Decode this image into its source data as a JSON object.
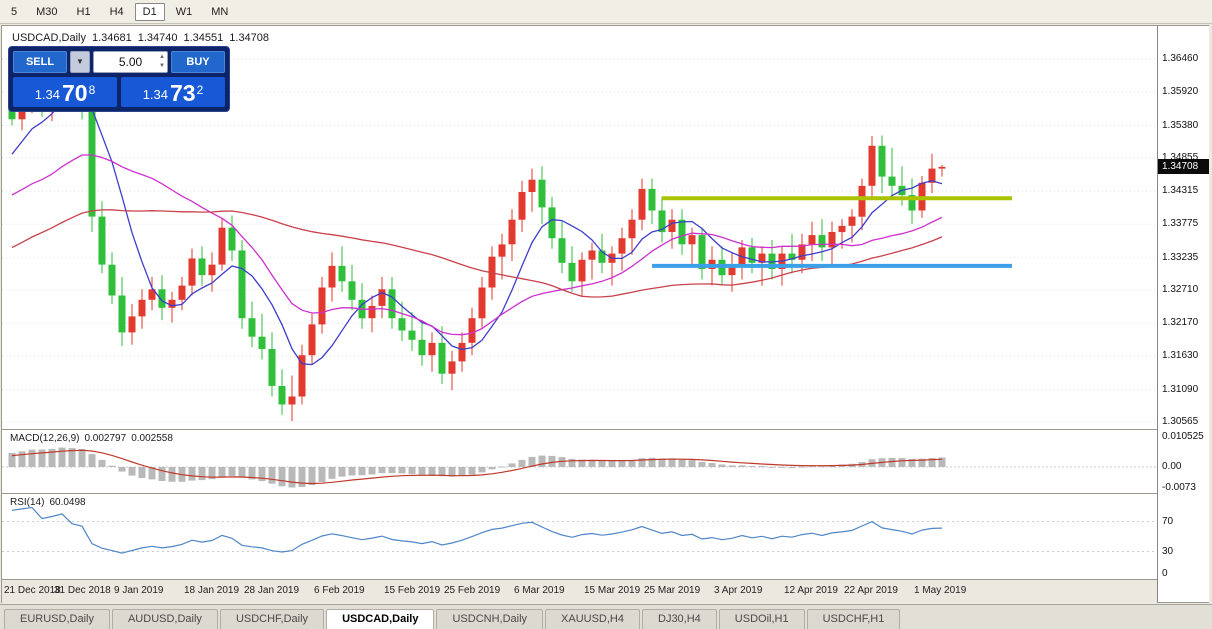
{
  "toolbar": {
    "timeframes": [
      "5",
      "M30",
      "H1",
      "H4",
      "D1",
      "W1",
      "MN"
    ],
    "active": "D1"
  },
  "chart_header": {
    "symbol_title": "USDCAD,Daily",
    "open": "1.34681",
    "high": "1.34740",
    "low": "1.34551",
    "close": "1.34708"
  },
  "trade_panel": {
    "sell_label": "SELL",
    "buy_label": "BUY",
    "volume": "5.00",
    "icons": {
      "dropdown": "▼",
      "spin_up": "▲",
      "spin_down": "▼"
    },
    "sell_price": {
      "prefix": "1.34",
      "big": "70",
      "sup": "8"
    },
    "buy_price": {
      "prefix": "1.34",
      "big": "73",
      "sup": "2"
    }
  },
  "price_scale": {
    "ticks": [
      "1.36460",
      "1.35920",
      "1.35380",
      "1.34855",
      "1.34315",
      "1.33775",
      "1.33235",
      "1.32710",
      "1.32170",
      "1.31630",
      "1.31090",
      "1.30565"
    ],
    "last_price": "1.34708"
  },
  "indicators": {
    "macd": {
      "label": "MACD(12,26,9)",
      "value_main": "0.002797",
      "value_signal": "0.002558",
      "scale": [
        "0.010525",
        "0.00",
        "-0.0073"
      ]
    },
    "rsi": {
      "label": "RSI(14)",
      "value": "60.0498",
      "scale": [
        "70",
        "30",
        "0"
      ]
    }
  },
  "tabs": {
    "items": [
      "EURUSD,Daily",
      "AUDUSD,Daily",
      "USDCHF,Daily",
      "USDCAD,Daily",
      "USDCNH,Daily",
      "XAUUSD,H4",
      "DJ30,H4",
      "USDOil,H1",
      "USDCHF,H1"
    ],
    "active": "USDCAD,Daily"
  },
  "chart_data": {
    "type": "candlestick",
    "symbol": "USDCAD",
    "timeframe": "Daily",
    "up_color": "#e23a2e",
    "down_color": "#2fbf3a",
    "last_price": 1.34708,
    "y_axis_ticks": [
      1.3646,
      1.3592,
      1.3538,
      1.34855,
      1.34315,
      1.33775,
      1.33235,
      1.3271,
      1.3217,
      1.3163,
      1.3109,
      1.30565
    ],
    "candles_ohlc": [
      [
        1.358,
        1.3605,
        1.3538,
        1.3548
      ],
      [
        1.3548,
        1.3585,
        1.353,
        1.3575
      ],
      [
        1.3575,
        1.3622,
        1.3558,
        1.361
      ],
      [
        1.361,
        1.3632,
        1.3552,
        1.3565
      ],
      [
        1.3565,
        1.3605,
        1.3545,
        1.3595
      ],
      [
        1.3595,
        1.3648,
        1.358,
        1.364
      ],
      [
        1.364,
        1.3658,
        1.3562,
        1.3585
      ],
      [
        1.3585,
        1.3618,
        1.3548,
        1.3568
      ],
      [
        1.3568,
        1.3585,
        1.3365,
        1.339
      ],
      [
        1.339,
        1.3415,
        1.3298,
        1.3312
      ],
      [
        1.3312,
        1.3332,
        1.3248,
        1.3262
      ],
      [
        1.3262,
        1.3292,
        1.318,
        1.3202
      ],
      [
        1.3202,
        1.3248,
        1.3182,
        1.3228
      ],
      [
        1.3228,
        1.3272,
        1.3208,
        1.3255
      ],
      [
        1.3255,
        1.3292,
        1.3238,
        1.3272
      ],
      [
        1.3272,
        1.3295,
        1.3222,
        1.3242
      ],
      [
        1.3242,
        1.3268,
        1.3218,
        1.3255
      ],
      [
        1.3255,
        1.3292,
        1.3238,
        1.3278
      ],
      [
        1.3278,
        1.3338,
        1.3262,
        1.3322
      ],
      [
        1.3322,
        1.3342,
        1.3278,
        1.3295
      ],
      [
        1.3295,
        1.3332,
        1.3268,
        1.3312
      ],
      [
        1.3312,
        1.3388,
        1.3302,
        1.3372
      ],
      [
        1.3372,
        1.3392,
        1.3318,
        1.3335
      ],
      [
        1.3335,
        1.3352,
        1.3208,
        1.3225
      ],
      [
        1.3225,
        1.3252,
        1.3178,
        1.3195
      ],
      [
        1.3195,
        1.3232,
        1.3158,
        1.3175
      ],
      [
        1.3175,
        1.3202,
        1.3098,
        1.3115
      ],
      [
        1.3115,
        1.3142,
        1.3068,
        1.3085
      ],
      [
        1.3085,
        1.3132,
        1.3058,
        1.3098
      ],
      [
        1.3098,
        1.3182,
        1.3085,
        1.3165
      ],
      [
        1.3165,
        1.3232,
        1.315,
        1.3215
      ],
      [
        1.3215,
        1.3292,
        1.32,
        1.3275
      ],
      [
        1.3275,
        1.3332,
        1.3252,
        1.331
      ],
      [
        1.331,
        1.3342,
        1.3268,
        1.3285
      ],
      [
        1.3285,
        1.3312,
        1.3238,
        1.3255
      ],
      [
        1.3255,
        1.3282,
        1.3208,
        1.3225
      ],
      [
        1.3225,
        1.3262,
        1.3202,
        1.3245
      ],
      [
        1.3245,
        1.3292,
        1.3225,
        1.3272
      ],
      [
        1.3272,
        1.3292,
        1.3208,
        1.3225
      ],
      [
        1.3225,
        1.3252,
        1.3188,
        1.3205
      ],
      [
        1.3205,
        1.3235,
        1.3172,
        1.319
      ],
      [
        1.319,
        1.3222,
        1.3148,
        1.3165
      ],
      [
        1.3165,
        1.3202,
        1.3138,
        1.3185
      ],
      [
        1.3185,
        1.3212,
        1.3118,
        1.3135
      ],
      [
        1.3135,
        1.3172,
        1.3108,
        1.3155
      ],
      [
        1.3155,
        1.3202,
        1.3138,
        1.3185
      ],
      [
        1.3185,
        1.3242,
        1.3165,
        1.3225
      ],
      [
        1.3225,
        1.3292,
        1.321,
        1.3275
      ],
      [
        1.3275,
        1.3342,
        1.3255,
        1.3325
      ],
      [
        1.3325,
        1.3362,
        1.3288,
        1.3345
      ],
      [
        1.3345,
        1.3402,
        1.3318,
        1.3385
      ],
      [
        1.3385,
        1.3448,
        1.3365,
        1.343
      ],
      [
        1.343,
        1.3468,
        1.3398,
        1.345
      ],
      [
        1.345,
        1.3472,
        1.3378,
        1.3405
      ],
      [
        1.3405,
        1.3422,
        1.3338,
        1.3355
      ],
      [
        1.3355,
        1.3382,
        1.3298,
        1.3315
      ],
      [
        1.3315,
        1.3342,
        1.3268,
        1.3285
      ],
      [
        1.3285,
        1.3332,
        1.3262,
        1.332
      ],
      [
        1.332,
        1.3348,
        1.3288,
        1.3335
      ],
      [
        1.3335,
        1.3362,
        1.3298,
        1.3315
      ],
      [
        1.3315,
        1.3342,
        1.3278,
        1.333
      ],
      [
        1.333,
        1.3372,
        1.3302,
        1.3355
      ],
      [
        1.3355,
        1.3402,
        1.3328,
        1.3385
      ],
      [
        1.3385,
        1.3452,
        1.3368,
        1.3435
      ],
      [
        1.3435,
        1.3452,
        1.3378,
        1.34
      ],
      [
        1.34,
        1.3422,
        1.3348,
        1.3365
      ],
      [
        1.3365,
        1.3402,
        1.3338,
        1.3385
      ],
      [
        1.3385,
        1.3402,
        1.3328,
        1.3345
      ],
      [
        1.3345,
        1.3372,
        1.3308,
        1.336
      ],
      [
        1.336,
        1.3372,
        1.3288,
        1.3305
      ],
      [
        1.3305,
        1.3342,
        1.3278,
        1.332
      ],
      [
        1.332,
        1.3342,
        1.3278,
        1.3295
      ],
      [
        1.3295,
        1.3332,
        1.3268,
        1.331
      ],
      [
        1.331,
        1.3352,
        1.3288,
        1.334
      ],
      [
        1.334,
        1.3356,
        1.3298,
        1.3315
      ],
      [
        1.3315,
        1.3342,
        1.3278,
        1.333
      ],
      [
        1.333,
        1.3352,
        1.3288,
        1.3305
      ],
      [
        1.3305,
        1.3342,
        1.3278,
        1.333
      ],
      [
        1.333,
        1.3362,
        1.3298,
        1.332
      ],
      [
        1.332,
        1.3362,
        1.3298,
        1.3345
      ],
      [
        1.3345,
        1.3382,
        1.3318,
        1.336
      ],
      [
        1.336,
        1.3386,
        1.3318,
        1.334
      ],
      [
        1.334,
        1.3382,
        1.3308,
        1.3365
      ],
      [
        1.3365,
        1.3386,
        1.3338,
        1.3375
      ],
      [
        1.3375,
        1.3402,
        1.3348,
        1.339
      ],
      [
        1.339,
        1.3452,
        1.3368,
        1.344
      ],
      [
        1.344,
        1.3521,
        1.3418,
        1.3505
      ],
      [
        1.3505,
        1.3522,
        1.3428,
        1.3455
      ],
      [
        1.3455,
        1.3502,
        1.3418,
        1.344
      ],
      [
        1.344,
        1.3472,
        1.3408,
        1.3425
      ],
      [
        1.3425,
        1.3452,
        1.3378,
        1.34
      ],
      [
        1.34,
        1.3456,
        1.3388,
        1.3445
      ],
      [
        1.3445,
        1.3492,
        1.3428,
        1.3468
      ],
      [
        1.34681,
        1.3474,
        1.34551,
        1.34708
      ]
    ],
    "x_date_labels": [
      {
        "i": 0,
        "t": "21 Dec 2018"
      },
      {
        "i": 5,
        "t": "31 Dec 2018"
      },
      {
        "i": 11,
        "t": "9 Jan 2019"
      },
      {
        "i": 18,
        "t": "18 Jan 2019"
      },
      {
        "i": 24,
        "t": "28 Jan 2019"
      },
      {
        "i": 31,
        "t": "6 Feb 2019"
      },
      {
        "i": 38,
        "t": "15 Feb 2019"
      },
      {
        "i": 44,
        "t": "25 Feb 2019"
      },
      {
        "i": 51,
        "t": "6 Mar 2019"
      },
      {
        "i": 58,
        "t": "15 Mar 2019"
      },
      {
        "i": 64,
        "t": "25 Mar 2019"
      },
      {
        "i": 71,
        "t": "3 Apr 2019"
      },
      {
        "i": 78,
        "t": "12 Apr 2019"
      },
      {
        "i": 84,
        "t": "22 Apr 2019"
      },
      {
        "i": 91,
        "t": "1 May 2019"
      }
    ],
    "overlays": [
      {
        "name": "resistance-line",
        "price": 1.342,
        "color": "#a9c300",
        "start_index": 65,
        "end_index": 100,
        "width": 4
      },
      {
        "name": "support-line",
        "price": 1.331,
        "color": "#3aa0e8",
        "start_index": 64,
        "end_index": 100,
        "width": 4
      }
    ],
    "moving_averages": [
      {
        "period": 7,
        "color": "#3d3dcc"
      },
      {
        "period": 21,
        "color": "#cf2fcf"
      },
      {
        "period": 50,
        "color": "#c8414b"
      }
    ],
    "macd_params": [
      12,
      26,
      9
    ],
    "rsi_period": 14
  }
}
